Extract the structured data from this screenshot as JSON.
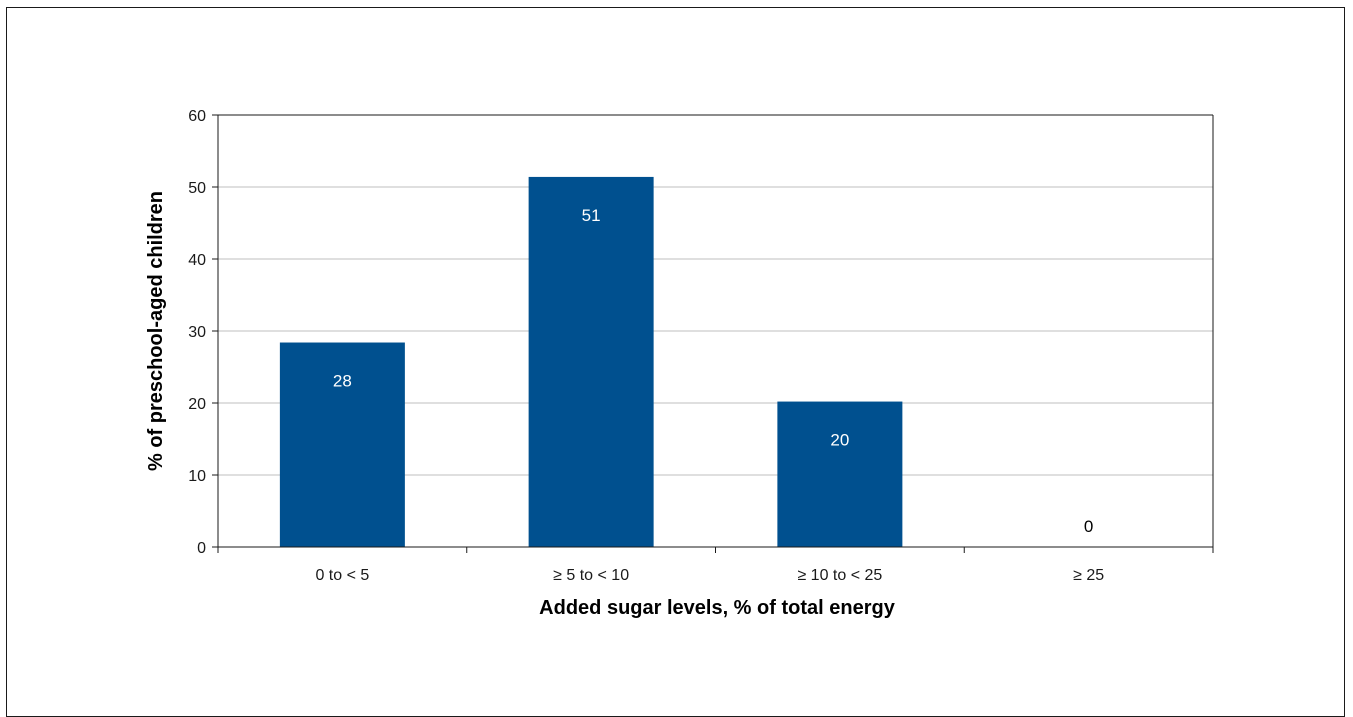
{
  "chart_data": {
    "type": "bar",
    "categories": [
      "0 to < 5",
      "≥ 5 to < 10",
      "≥ 10 to < 25",
      "≥ 25"
    ],
    "values": [
      28.4,
      51.4,
      20.2,
      0
    ],
    "data_labels": [
      "28",
      "51",
      "20",
      "0"
    ],
    "xlabel": "Added sugar levels, % of total energy",
    "ylabel": "% of preschool-aged children",
    "ylim": [
      0,
      60
    ],
    "yticks": [
      "0",
      "10",
      "20",
      "30",
      "40",
      "50",
      "60"
    ],
    "grid": true,
    "bar_color": "#00508F"
  }
}
